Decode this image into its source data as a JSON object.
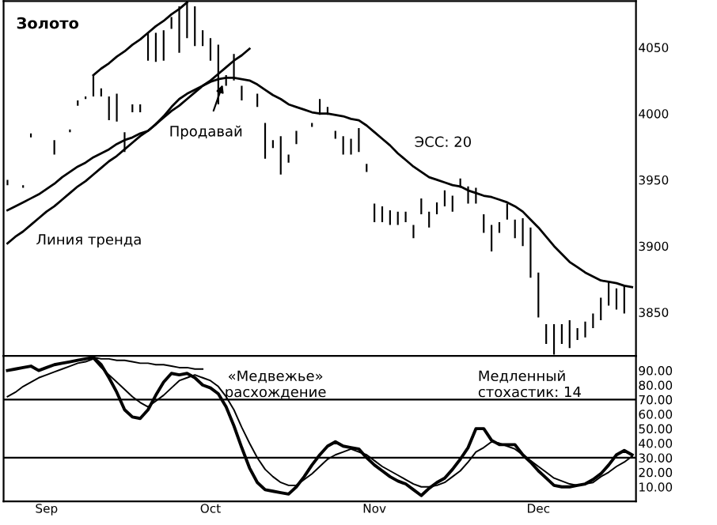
{
  "chart_data": [
    {
      "type": "bar",
      "title": "Золото",
      "ylim": [
        3817,
        4085
      ],
      "yticks": [
        3850,
        3900,
        3950,
        4000,
        4050
      ],
      "categories": [
        null,
        null,
        null,
        null,
        null,
        null,
        null,
        null,
        null,
        null,
        null,
        null,
        null,
        null,
        null,
        null,
        null,
        null,
        null,
        null,
        null,
        null,
        null,
        null,
        null,
        null,
        null,
        null,
        null,
        null,
        null,
        null,
        null,
        null,
        null,
        null,
        null,
        null,
        null,
        null,
        null,
        null,
        null,
        null,
        null,
        null,
        null,
        null,
        null,
        null,
        null,
        null,
        null,
        null,
        null,
        null,
        null,
        null,
        null,
        null,
        null,
        null,
        null,
        null,
        null,
        null,
        null,
        null,
        null,
        null,
        null,
        null,
        null,
        null,
        null,
        null,
        null,
        null,
        null,
        null,
        null
      ],
      "series": [
        {
          "type": "bar",
          "color": "#000000",
          "base": [
            3946,
            null,
            3944,
            3982,
            null,
            null,
            3969,
            null,
            3986,
            4006,
            4011,
            4013,
            4013,
            3995,
            3994,
            3971,
            4001,
            4001,
            4040,
            4039,
            4040,
            4064,
            4046,
            4057,
            4051,
            4051,
            4040,
            4007,
            4021,
            4025,
            4010,
            null,
            4005,
            3966,
            3974,
            3954,
            3963,
            3977,
            null,
            3990,
            3999,
            3999,
            3981,
            3969,
            3969,
            3971,
            3956,
            3918,
            3918,
            3916,
            3916,
            3918,
            3906,
            3924,
            3914,
            3924,
            3930,
            3926,
            3944,
            3932,
            3932,
            3910,
            3896,
            3910,
            3920,
            3906,
            3900,
            3876,
            3846,
            3826,
            3818,
            3826,
            3823,
            3829,
            3831,
            3838,
            3844,
            3855,
            3852,
            3849,
            null
          ],
          "values": [
            4,
            null,
            2,
            3,
            null,
            null,
            11,
            null,
            2,
            4,
            2,
            16,
            6,
            18,
            21,
            15,
            6,
            6,
            21,
            22,
            23,
            9,
            35,
            27,
            30,
            12,
            17,
            45,
            8,
            20,
            11,
            null,
            10,
            27,
            6,
            29,
            6,
            10,
            null,
            3,
            12,
            6,
            6,
            14,
            12,
            18,
            6,
            14,
            12,
            11,
            10,
            8,
            10,
            12,
            12,
            9,
            12,
            12,
            7,
            13,
            12,
            14,
            20,
            8,
            12,
            14,
            21,
            38,
            34,
            15,
            23,
            15,
            21,
            9,
            12,
            11,
            17,
            18,
            16,
            21,
            null
          ]
        },
        {
          "type": "line",
          "color": "#000000",
          "values": [
            3927,
            3930,
            3933,
            3936,
            3939,
            3943,
            3947,
            3952,
            3956,
            3960,
            3963,
            3967,
            3970,
            3973,
            3977,
            3980,
            3982,
            3985,
            3987,
            3992,
            3998,
            4005,
            4011,
            4015,
            4018,
            4021,
            4024,
            4026,
            4027,
            4027,
            4026,
            4025,
            4022,
            4018,
            4014,
            4011,
            4007,
            4005,
            4003,
            4001,
            4000,
            4000,
            3999,
            3998,
            3996,
            3995,
            3991,
            3986,
            3981,
            3976,
            3970,
            3965,
            3960,
            3956,
            3952,
            3950,
            3948,
            3946,
            3945,
            3942,
            3940,
            3938,
            3937,
            3935,
            3933,
            3930,
            3926,
            3920,
            3914,
            3907,
            3900,
            3894,
            3888,
            3884,
            3880,
            3877,
            3874,
            3873,
            3872,
            3870,
            3869
          ]
        },
        {
          "type": "line",
          "color": "#000000",
          "values": [
            3902,
            3907,
            3911,
            3916,
            3921,
            3926,
            3930,
            3935,
            3940,
            3945,
            3949,
            3954,
            3959,
            3964,
            3968,
            3973,
            3978,
            3983,
            3987,
            3992,
            3997,
            4002,
            4006,
            4011,
            4016,
            4021,
            4025,
            4030,
            4035,
            4040,
            4044,
            4049,
            null,
            null,
            null,
            null,
            null,
            null,
            null,
            null,
            null,
            null,
            null,
            null,
            null,
            null,
            null,
            null,
            null,
            null,
            null,
            null,
            null,
            null,
            null,
            null,
            null,
            null,
            null,
            null,
            null,
            null,
            null,
            null,
            null,
            null,
            null,
            null,
            null,
            null,
            null,
            null,
            null,
            null,
            null,
            null,
            null,
            null,
            null,
            null,
            null
          ]
        },
        {
          "type": "line",
          "color": "#000000",
          "values": [
            null,
            null,
            null,
            null,
            null,
            null,
            null,
            null,
            null,
            null,
            null,
            4029,
            4034,
            4038,
            4043,
            4047,
            4052,
            4056,
            4061,
            4066,
            4070,
            4075,
            4079,
            4084,
            null,
            null,
            null,
            null,
            null,
            null,
            null,
            null,
            null,
            null,
            null,
            null,
            null,
            null,
            null,
            null,
            null,
            null,
            null,
            null,
            null,
            null,
            null,
            null,
            null,
            null,
            null,
            null,
            null,
            null,
            null,
            null,
            null,
            null,
            null,
            null,
            null,
            null,
            null,
            null,
            null,
            null,
            null,
            null,
            null,
            null,
            null,
            null,
            null,
            null,
            null,
            null,
            null,
            null,
            null,
            null,
            null
          ]
        }
      ],
      "annotations": [
        "Продавай",
        "ЭСС: 20",
        "Линия тренда"
      ]
    },
    {
      "type": "line",
      "ylim": [
        0,
        100
      ],
      "categories": [
        null,
        null,
        null,
        null,
        null,
        "Sep",
        null,
        null,
        null,
        null,
        null,
        null,
        null,
        null,
        null,
        null,
        null,
        null,
        null,
        null,
        null,
        null,
        null,
        null,
        null,
        null,
        "Oct",
        null,
        null,
        null,
        null,
        null,
        null,
        null,
        null,
        null,
        null,
        null,
        null,
        null,
        null,
        null,
        null,
        null,
        null,
        null,
        null,
        "Nov",
        null,
        null,
        null,
        null,
        null,
        null,
        null,
        null,
        null,
        null,
        null,
        null,
        null,
        null,
        null,
        null,
        null,
        null,
        null,
        null,
        "Dec",
        null,
        null,
        null,
        null,
        null,
        null,
        null,
        null,
        null,
        null,
        null,
        null
      ],
      "yticks": [
        {
          "value": 10,
          "label": "10.00"
        },
        {
          "value": 20,
          "label": "20.00"
        },
        {
          "value": 30,
          "label": "30.00"
        },
        {
          "value": 40,
          "label": "40.00"
        },
        {
          "value": 50,
          "label": "50.00"
        },
        {
          "value": 60,
          "label": "60.00"
        },
        {
          "value": 70,
          "label": "70.00"
        },
        {
          "value": 80,
          "label": "80.00"
        },
        {
          "value": 90,
          "label": "90.00"
        }
      ],
      "ref_lines": [
        {
          "axis": "y",
          "value": 70,
          "color": "#000000"
        },
        {
          "axis": "y",
          "value": 30,
          "color": "#000000"
        }
      ],
      "series": [
        {
          "color": "#000000",
          "values": [
            90,
            91,
            92,
            93,
            90,
            92,
            94,
            95,
            96,
            97,
            98,
            99,
            94,
            85,
            75,
            63,
            58,
            57,
            63,
            73,
            82,
            88,
            87,
            88,
            85,
            80,
            78,
            74,
            65,
            52,
            37,
            23,
            13,
            8,
            7,
            6,
            5,
            10,
            17,
            25,
            32,
            38,
            41,
            38,
            37,
            36,
            30,
            25,
            21,
            17,
            14,
            12,
            8,
            4,
            9,
            13,
            16,
            22,
            29,
            37,
            50,
            50,
            42,
            39,
            39,
            39,
            32,
            27,
            21,
            16,
            11,
            10,
            10,
            11,
            12,
            15,
            19,
            25,
            32,
            35,
            32
          ]
        },
        {
          "color": "#000000",
          "values": [
            72,
            75,
            79,
            82,
            85,
            87,
            89,
            91,
            93,
            95,
            96,
            98,
            92,
            87,
            82,
            77,
            72,
            68,
            65,
            69,
            73,
            78,
            83,
            85,
            87,
            85,
            83,
            79,
            72,
            63,
            51,
            40,
            30,
            22,
            17,
            13,
            11,
            11,
            15,
            19,
            24,
            29,
            32,
            34,
            36,
            34,
            32,
            28,
            24,
            21,
            18,
            15,
            12,
            10,
            10,
            11,
            13,
            17,
            21,
            27,
            34,
            37,
            41,
            40,
            38,
            36,
            32,
            28,
            24,
            20,
            16,
            14,
            12,
            11,
            12,
            13,
            17,
            20,
            24,
            27,
            31
          ]
        },
        {
          "color": "#000000",
          "values": [
            null,
            null,
            null,
            null,
            null,
            null,
            null,
            null,
            null,
            null,
            null,
            99,
            98,
            98,
            97,
            97,
            96,
            95,
            95,
            94,
            94,
            93,
            92,
            92,
            91,
            91,
            null,
            null,
            null,
            null,
            null,
            null,
            null,
            null,
            null,
            null,
            null,
            null,
            null,
            null,
            null,
            null,
            null,
            null,
            null,
            null,
            null,
            null,
            null,
            null,
            null,
            null,
            null,
            null,
            null,
            null,
            null,
            null,
            null,
            null,
            null,
            null,
            null,
            null,
            null,
            null,
            null,
            null,
            null,
            null,
            null,
            null,
            null,
            null,
            null,
            null,
            null,
            null,
            null,
            null,
            null
          ]
        }
      ],
      "annotations": [
        "«Медвежье»\nрасхождение",
        "Медленный\nстохастик: 14"
      ]
    }
  ]
}
